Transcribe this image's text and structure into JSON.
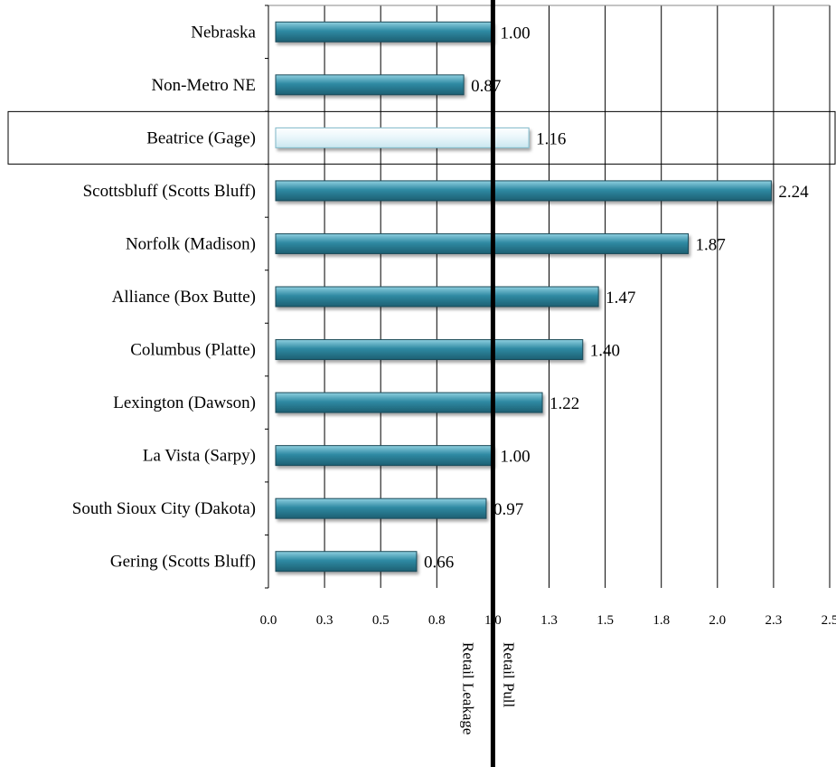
{
  "chart_data": {
    "type": "bar",
    "orientation": "horizontal",
    "categories": [
      "Nebraska",
      "Non-Metro NE",
      "Beatrice (Gage)",
      "Scottsbluff (Scotts Bluff)",
      "Norfolk (Madison)",
      "Alliance (Box Butte)",
      "Columbus (Platte)",
      "Lexington (Dawson)",
      "La Vista (Sarpy)",
      "South Sioux City (Dakota)",
      "Gering (Scotts Bluff)"
    ],
    "values": [
      1.0,
      0.87,
      1.16,
      2.24,
      1.87,
      1.47,
      1.4,
      1.22,
      1.0,
      0.97,
      0.66
    ],
    "value_labels": [
      "1.00",
      "0.87",
      "1.16",
      "2.24",
      "1.87",
      "1.47",
      "1.40",
      "1.22",
      "1.00",
      "0.97",
      "0.66"
    ],
    "highlighted_category": "Beatrice (Gage)",
    "xlim": [
      0,
      2.5
    ],
    "x_tick_labels": [
      "0.0",
      "0.3",
      "0.5",
      "0.8",
      "1.0",
      "1.3",
      "1.5",
      "1.8",
      "2.0",
      "2.3",
      "2.5"
    ],
    "reference_line": 1.0,
    "reference_labels": {
      "left": "Retail Leakage",
      "right": "Retail Pull"
    },
    "grid": "vertical",
    "legend": "none",
    "title": "",
    "xlabel": "",
    "ylabel": "",
    "colors": {
      "bar": "#2f8aa3",
      "bar_light": "#8fd0e0",
      "bar_dark": "#1d5f72",
      "highlight_bar": "#e8f5fa",
      "highlight_edge": "#7fb8c9",
      "gridline": "#000000",
      "reference_line": "#000000"
    }
  }
}
